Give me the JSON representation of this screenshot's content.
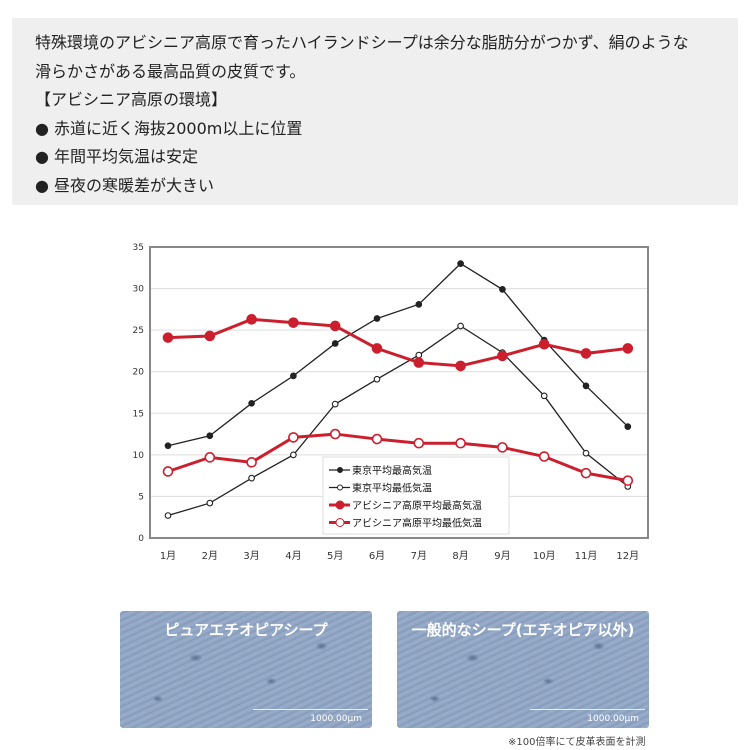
{
  "intro": {
    "lines": [
      "特殊環境のアビシニア高原で育ったハイランドシープは余分な脂肪分がつかず、絹のような",
      "滑らかさがある最高品質の皮質です。",
      "【アビシニア高原の環境】",
      "● 赤道に近く海抜2000m以上に位置",
      "● 年間平均気温は安定",
      "● 昼夜の寒暖差が大きい"
    ]
  },
  "chart_data": {
    "type": "line",
    "categories": [
      "1月",
      "2月",
      "3月",
      "4月",
      "5月",
      "6月",
      "7月",
      "8月",
      "9月",
      "10月",
      "11月",
      "12月"
    ],
    "ylim": [
      0,
      35
    ],
    "yticks": [
      0,
      5,
      10,
      15,
      20,
      25,
      30,
      35
    ],
    "grid": true,
    "legend_placement": "bottom-center",
    "series": [
      {
        "name": "東京平均最高気温",
        "color": "#222222",
        "marker": "filled",
        "values": [
          11.1,
          12.3,
          16.2,
          19.5,
          23.4,
          26.4,
          28.1,
          33.0,
          29.9,
          23.8,
          18.3,
          13.4
        ]
      },
      {
        "name": "東京平均最低気温",
        "color": "#222222",
        "marker": "open",
        "values": [
          2.7,
          4.2,
          7.2,
          10.0,
          16.1,
          19.1,
          22.0,
          25.5,
          22.3,
          17.1,
          10.2,
          6.2
        ]
      },
      {
        "name": "アビシニア高原平均最高気温",
        "color": "#cc1f2e",
        "marker": "filled",
        "values": [
          24.1,
          24.3,
          26.3,
          25.9,
          25.5,
          22.8,
          21.1,
          20.7,
          21.9,
          23.3,
          22.2,
          22.8
        ]
      },
      {
        "name": "アビシニア高原平均最低気温",
        "color": "#cc1f2e",
        "marker": "open",
        "values": [
          8.0,
          9.7,
          9.1,
          12.1,
          12.5,
          11.9,
          11.4,
          11.4,
          10.9,
          9.8,
          7.8,
          6.9
        ]
      }
    ]
  },
  "photos": [
    {
      "title": "ピュアエチオピアシープ",
      "scale": "1000.00μm"
    },
    {
      "title": "一般的なシープ(エチオピア以外)",
      "scale": "1000.00μm"
    }
  ],
  "note": "※100倍率にて皮革表面を計測"
}
